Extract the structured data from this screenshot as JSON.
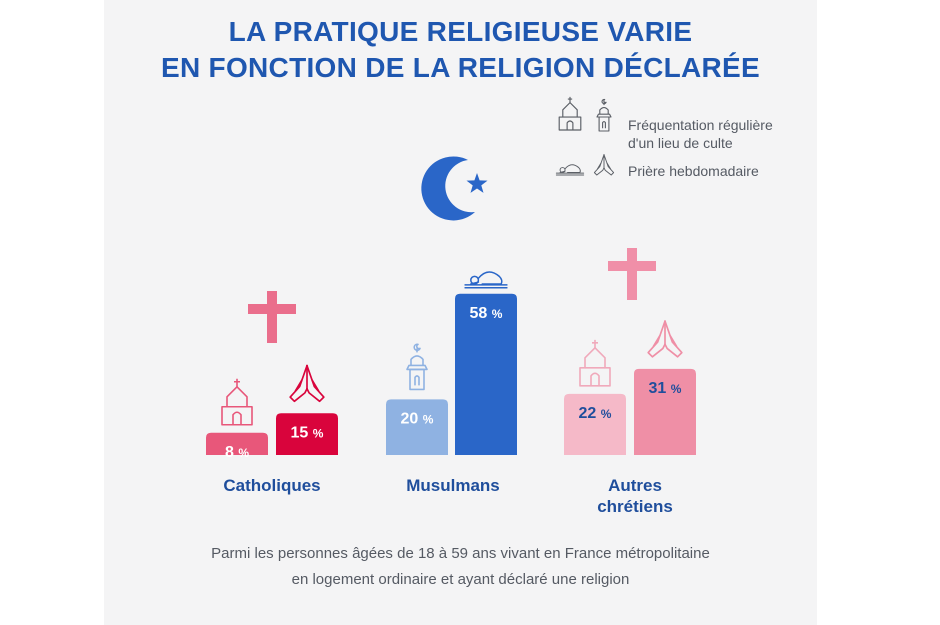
{
  "header": {
    "title_line1": "LA PRATIQUE RELIGIEUSE VARIE",
    "title_line2": "EN FONCTION DE LA RELIGION DÉCLARÉE"
  },
  "legend": {
    "item1_line1": "Fréquentation régulière",
    "item1_line2": "d'un lieu de culte",
    "item2": "Prière hebdomadaire"
  },
  "footnote": {
    "line1": "Parmi les personnes âgées de 18 à 59 ans vivant en France métropolitaine",
    "line2": "en logement ordinaire et ayant déclaré une religion"
  },
  "colors": {
    "title": "#1f57b0",
    "cath_attend": "#e8577a",
    "cath_pray": "#d9043c",
    "mus_attend": "#8fb2e2",
    "mus_pray": "#2a66c8",
    "other_attend": "#f5b9c8",
    "other_pray": "#ef8fa6"
  },
  "icons": [
    "church-icon",
    "minaret-icon",
    "prostration-icon",
    "praying-hands-icon",
    "cross-icon",
    "crescent-star-icon"
  ],
  "chart_data": {
    "type": "bar",
    "title": "LA PRATIQUE RELIGIEUSE VARIE EN FONCTION DE LA RELIGION DÉCLARÉE",
    "categories": [
      "Catholiques",
      "Musulmans",
      "Autres chrétiens"
    ],
    "series": [
      {
        "name": "Fréquentation régulière d'un lieu de culte",
        "values": [
          8,
          20,
          22
        ]
      },
      {
        "name": "Prière hebdomadaire",
        "values": [
          15,
          58,
          31
        ]
      }
    ],
    "unit": "%",
    "legend_position": "top-right",
    "grid": false
  }
}
